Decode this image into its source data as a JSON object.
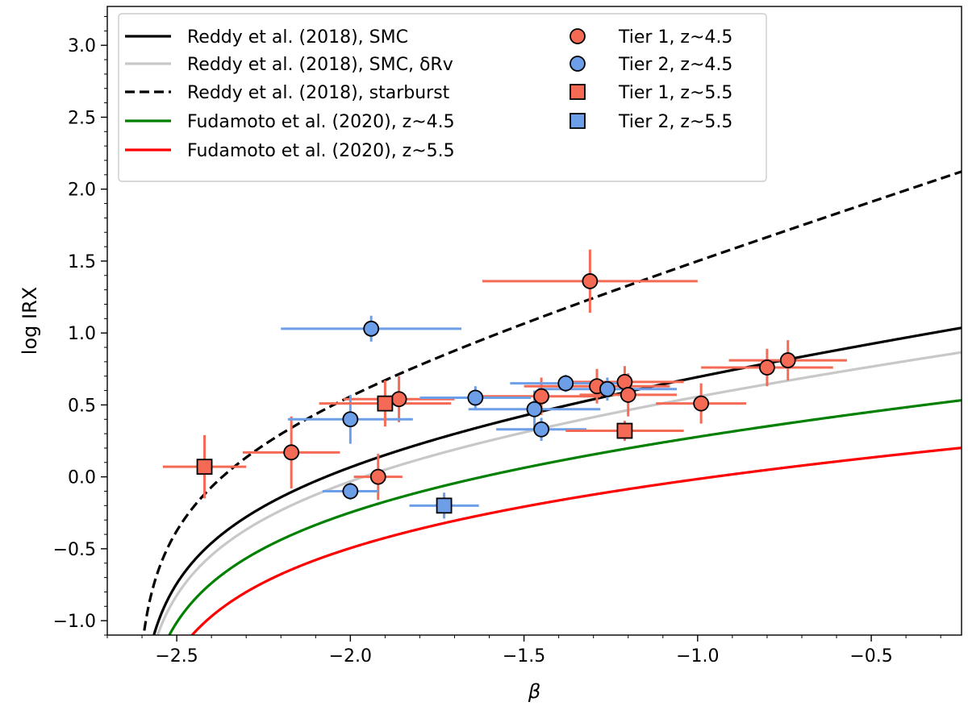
{
  "chart_data": {
    "type": "scatter",
    "xlabel": "β",
    "ylabel": "log IRX",
    "xlim": [
      -2.7,
      -0.24
    ],
    "ylim": [
      -1.1,
      3.27
    ],
    "xticks": [
      {
        "value": -2.5,
        "label": "−2.5"
      },
      {
        "value": -2.0,
        "label": "−2.0"
      },
      {
        "value": -1.5,
        "label": "−1.5"
      },
      {
        "value": -1.0,
        "label": "−1.0"
      },
      {
        "value": -0.5,
        "label": "−0.5"
      }
    ],
    "yticks": [
      {
        "value": -1.0,
        "label": "−1.0"
      },
      {
        "value": -0.5,
        "label": "−0.5"
      },
      {
        "value": 0.0,
        "label": "0.0"
      },
      {
        "value": 0.5,
        "label": "0.5"
      },
      {
        "value": 1.0,
        "label": "1.0"
      },
      {
        "value": 1.5,
        "label": "1.5"
      },
      {
        "value": 2.0,
        "label": "2.0"
      },
      {
        "value": 2.5,
        "label": "2.5"
      },
      {
        "value": 3.0,
        "label": "3.0"
      }
    ],
    "curves": [
      {
        "name": "Reddy et al. (2018), SMC",
        "color": "#000000",
        "dash": "",
        "beta0": -2.62,
        "k": 0.91
      },
      {
        "name": "Reddy et al. (2018), SMC, δRv",
        "color": "#c8c8c8",
        "dash": "",
        "beta0": -2.62,
        "k": 0.76
      },
      {
        "name": "Reddy et al. (2018), starburst",
        "color": "#000000",
        "dash": "dashed",
        "beta0": -2.62,
        "k": 1.99
      },
      {
        "name": "Fudamoto et al. (2020), z~4.5",
        "color": "#008000",
        "dash": "",
        "beta0": -2.62,
        "k": 0.5
      },
      {
        "name": "Fudamoto et al. (2020), z~5.5",
        "color": "#ff0000",
        "dash": "",
        "beta0": -2.62,
        "k": 0.3
      }
    ],
    "series": [
      {
        "name": "Tier 1, z~4.5",
        "marker": "circle",
        "color": "#f46a55",
        "points": [
          {
            "x": -1.31,
            "y": 1.36,
            "xerr": 0.31,
            "yerr": 0.22
          },
          {
            "x": -2.17,
            "y": 0.17,
            "xerr": 0.14,
            "yerr": 0.25
          },
          {
            "x": -1.92,
            "y": 0.0,
            "xerr": 0.07,
            "yerr": 0.16
          },
          {
            "x": -1.86,
            "y": 0.54,
            "xerr": 0.16,
            "yerr": 0.16
          },
          {
            "x": -1.45,
            "y": 0.56,
            "xerr": 0.17,
            "yerr": 0.13
          },
          {
            "x": -1.29,
            "y": 0.63,
            "xerr": 0.21,
            "yerr": 0.12
          },
          {
            "x": -1.21,
            "y": 0.66,
            "xerr": 0.17,
            "yerr": 0.11
          },
          {
            "x": -1.2,
            "y": 0.57,
            "xerr": 0.14,
            "yerr": 0.15
          },
          {
            "x": -0.99,
            "y": 0.51,
            "xerr": 0.13,
            "yerr": 0.14
          },
          {
            "x": -0.8,
            "y": 0.76,
            "xerr": 0.19,
            "yerr": 0.13
          },
          {
            "x": -0.74,
            "y": 0.81,
            "xerr": 0.17,
            "yerr": 0.14
          }
        ]
      },
      {
        "name": "Tier 2, z~4.5",
        "marker": "circle",
        "color": "#6d9ee8",
        "points": [
          {
            "x": -1.94,
            "y": 1.03,
            "xerr": 0.26,
            "yerr": 0.09
          },
          {
            "x": -2.0,
            "y": 0.4,
            "xerr": 0.18,
            "yerr": 0.17
          },
          {
            "x": -2.0,
            "y": -0.1,
            "xerr": 0.08,
            "yerr": 0.06
          },
          {
            "x": -1.64,
            "y": 0.55,
            "xerr": 0.16,
            "yerr": 0.08
          },
          {
            "x": -1.47,
            "y": 0.47,
            "xerr": 0.19,
            "yerr": 0.13
          },
          {
            "x": -1.45,
            "y": 0.33,
            "xerr": 0.13,
            "yerr": 0.08
          },
          {
            "x": -1.38,
            "y": 0.65,
            "xerr": 0.16,
            "yerr": 0.06
          },
          {
            "x": -1.26,
            "y": 0.61,
            "xerr": 0.2,
            "yerr": 0.08
          }
        ]
      },
      {
        "name": "Tier 1, z~5.5",
        "marker": "square",
        "color": "#f46a55",
        "points": [
          {
            "x": -2.42,
            "y": 0.07,
            "xerr": 0.12,
            "yerr": 0.22
          },
          {
            "x": -1.9,
            "y": 0.51,
            "xerr": 0.19,
            "yerr": 0.16
          },
          {
            "x": -1.21,
            "y": 0.32,
            "xerr": 0.17,
            "yerr": 0.07
          }
        ]
      },
      {
        "name": "Tier 2, z~5.5",
        "marker": "square",
        "color": "#6d9ee8",
        "points": [
          {
            "x": -1.73,
            "y": -0.2,
            "xerr": 0.1,
            "yerr": 0.09
          }
        ]
      }
    ],
    "legend": {
      "placement": "top-left",
      "lines": [
        {
          "label": "Reddy et al. (2018), SMC",
          "color": "#000000",
          "dash": ""
        },
        {
          "label": "Reddy et al. (2018), SMC, δRv",
          "color": "#c8c8c8",
          "dash": ""
        },
        {
          "label": "Reddy et al. (2018), starburst",
          "color": "#000000",
          "dash": "dashed"
        },
        {
          "label": "Fudamoto et al. (2020), z~4.5",
          "color": "#008000",
          "dash": ""
        },
        {
          "label": "Fudamoto et al. (2020), z~5.5",
          "color": "#ff0000",
          "dash": ""
        }
      ],
      "markers": [
        {
          "label": "Tier 1, z~4.5",
          "marker": "circle",
          "color": "#f46a55"
        },
        {
          "label": "Tier 2, z~4.5",
          "marker": "circle",
          "color": "#6d9ee8"
        },
        {
          "label": "Tier 1, z~5.5",
          "marker": "square",
          "color": "#f46a55"
        },
        {
          "label": "Tier 2, z~5.5",
          "marker": "square",
          "color": "#6d9ee8"
        }
      ]
    }
  }
}
